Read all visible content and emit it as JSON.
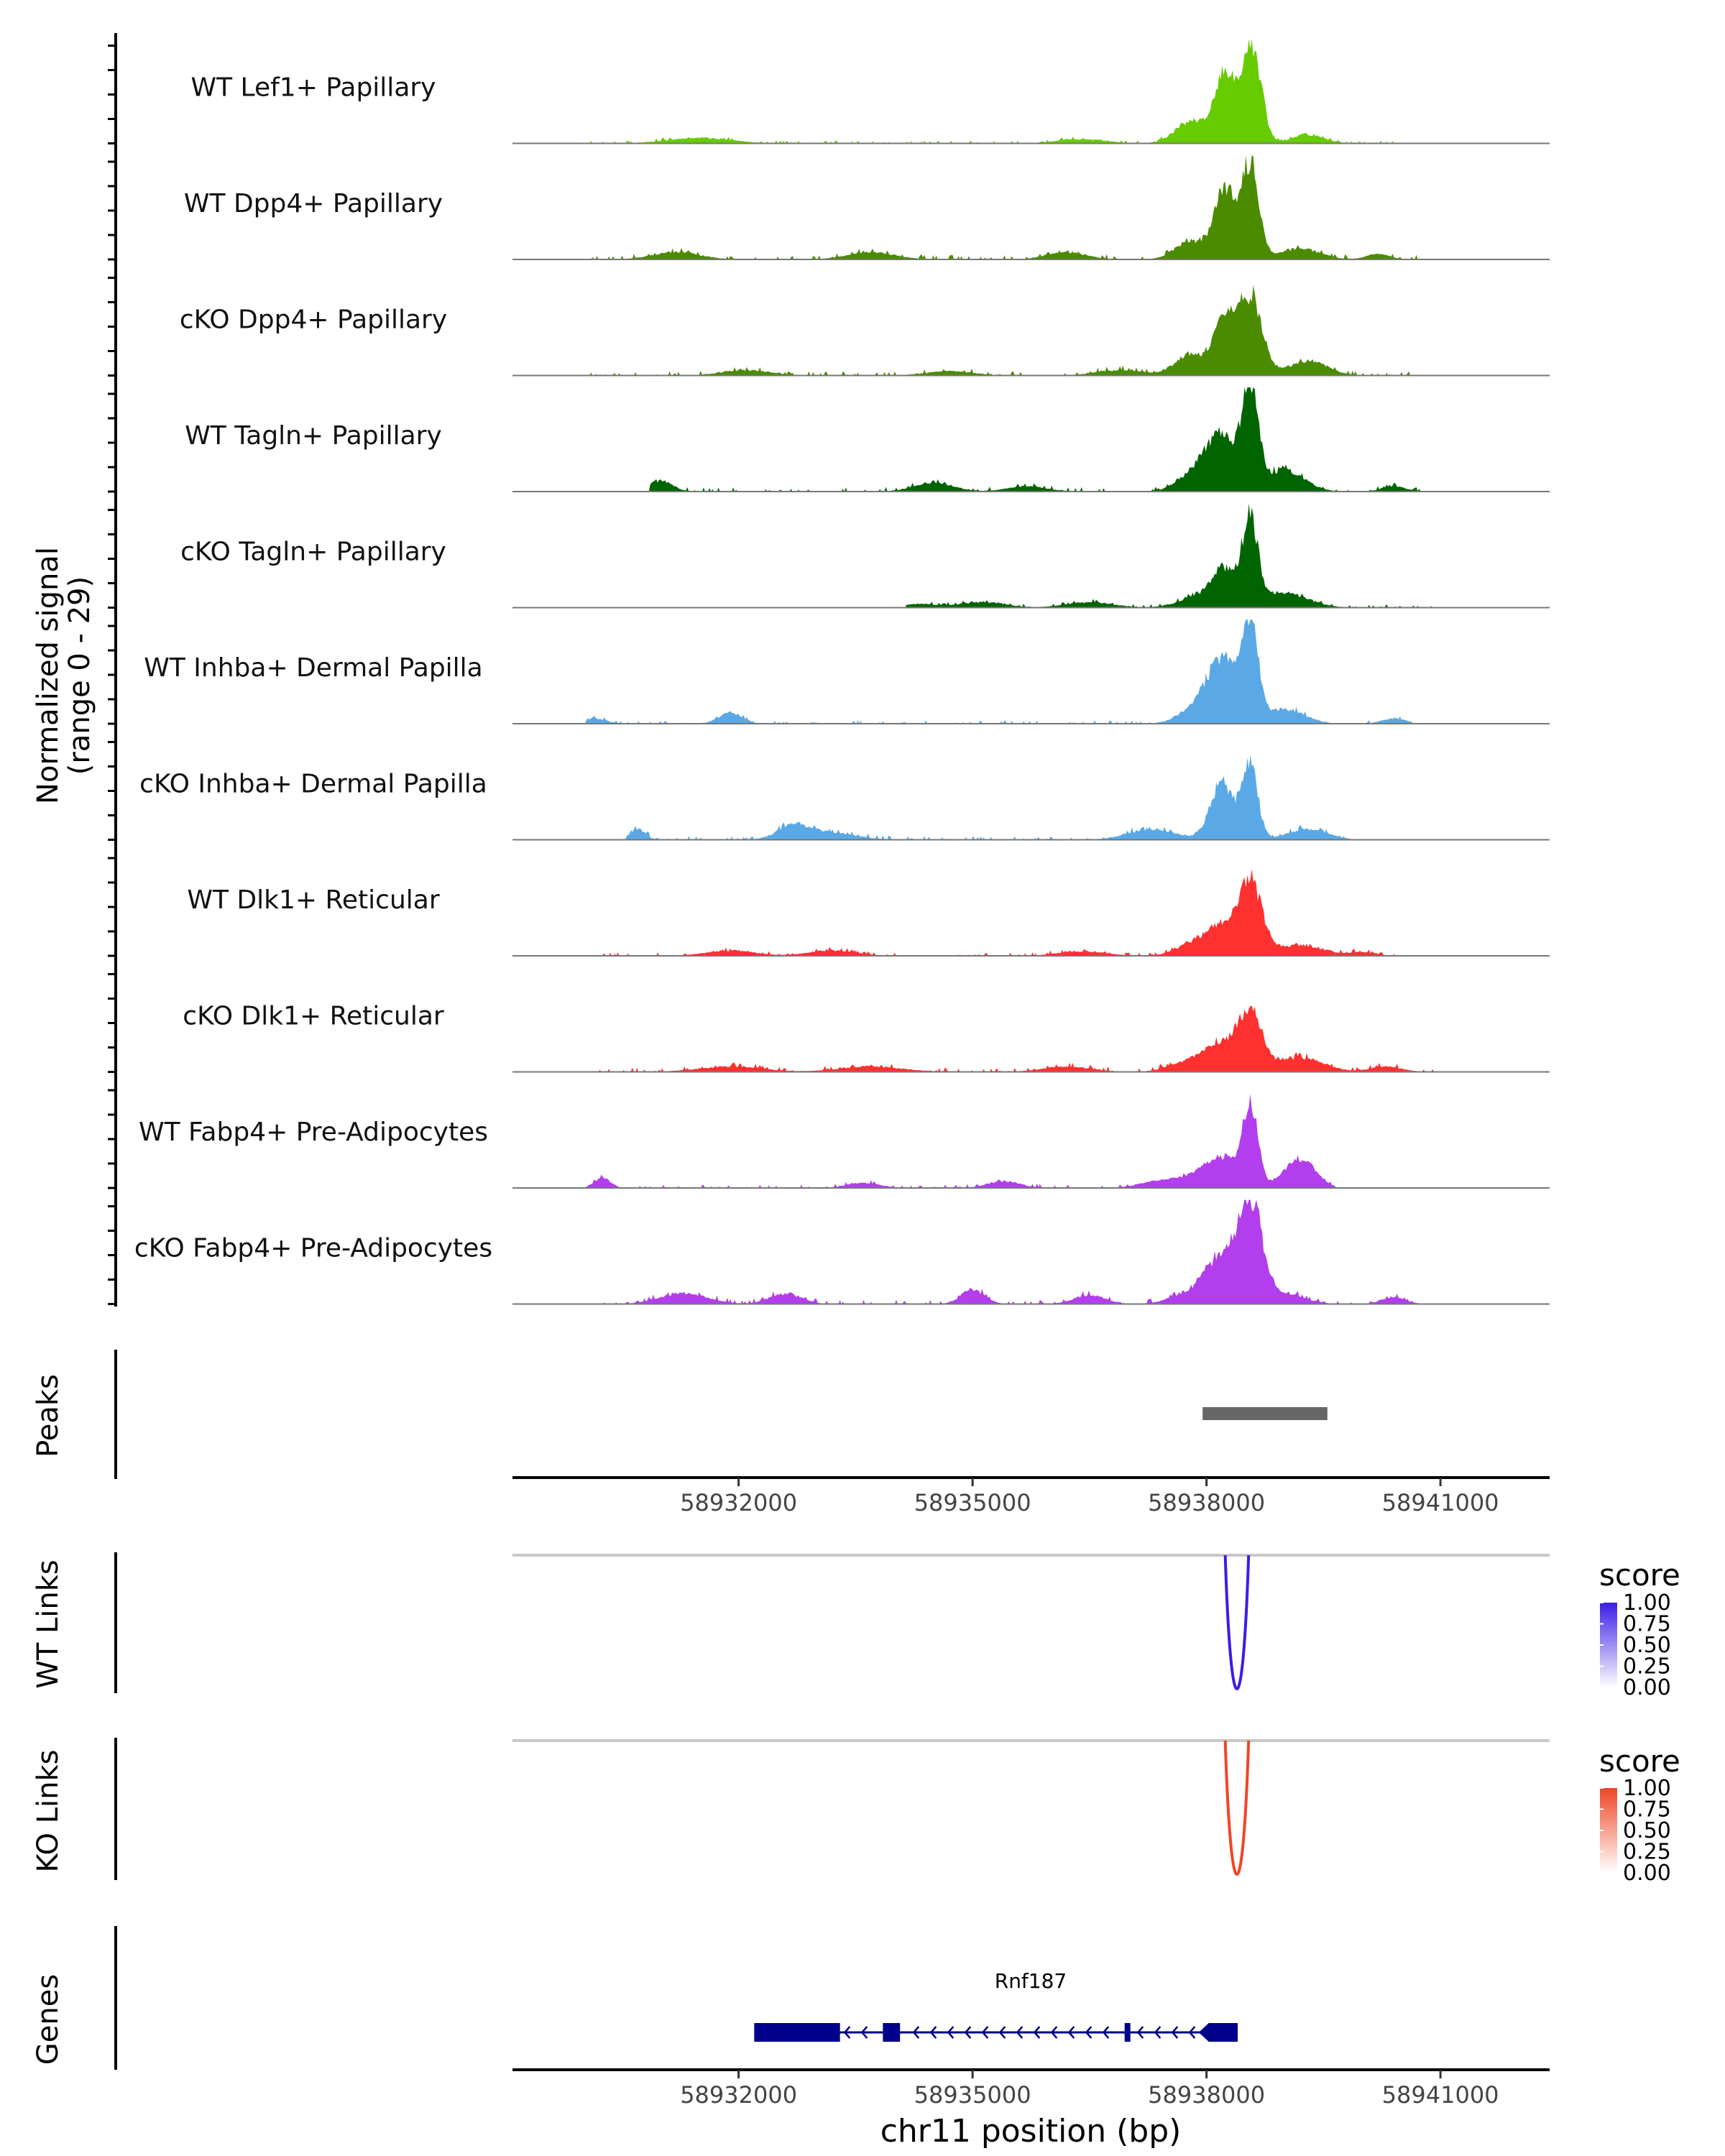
{
  "chart_data": {
    "type": "area",
    "title": "",
    "chromosome": "chr11",
    "xlabel": "chr11 position (bp)",
    "xlim": [
      58929100,
      58942400
    ],
    "x_ticks": [
      58932000,
      58935000,
      58938000,
      58941000
    ],
    "x_tick_labels": [
      "58932000",
      "58935000",
      "58938000",
      "58941000"
    ],
    "coverage": {
      "ylabel_line1": "Normalized signal",
      "ylabel_line2": "(range 0 - 29)",
      "ylim": [
        0,
        29
      ],
      "tracks": [
        {
          "name": "WT Lef1+ Papillary",
          "color": "#66CC00",
          "peaks": [
            [
              58938580,
              28.0,
              120
            ],
            [
              58938240,
              20.0,
              130
            ],
            [
              58937800,
              6.0,
              200
            ],
            [
              58939300,
              2.5,
              200
            ],
            [
              58931500,
              1.5,
              400
            ],
            [
              58936400,
              1.2,
              300
            ]
          ],
          "noise": [
            58930100,
            58940500
          ],
          "noise_amp": 0.8
        },
        {
          "name": "WT Dpp4+ Papillary",
          "color": "#4B8B00",
          "peaks": [
            [
              58938560,
              27.0,
              110
            ],
            [
              58938230,
              19.0,
              130
            ],
            [
              58937800,
              5.0,
              200
            ],
            [
              58939200,
              3.0,
              250
            ],
            [
              58931200,
              2.0,
              300
            ],
            [
              58933700,
              2.0,
              300
            ],
            [
              58936200,
              2.0,
              250
            ],
            [
              58940200,
              1.5,
              150
            ]
          ],
          "noise": [
            58930100,
            58940900
          ],
          "noise_amp": 1.3
        },
        {
          "name": "cKO Dpp4+ Papillary",
          "color": "#4B8B00",
          "peaks": [
            [
              58938560,
              22.0,
              150
            ],
            [
              58938230,
              16.0,
              130
            ],
            [
              58937800,
              6.0,
              200
            ],
            [
              58939300,
              4.0,
              250
            ],
            [
              58932100,
              1.5,
              300
            ],
            [
              58934700,
              1.2,
              300
            ],
            [
              58936900,
              1.5,
              300
            ]
          ],
          "noise": [
            58930100,
            58940900
          ],
          "noise_amp": 1.2
        },
        {
          "name": "WT Tagln+ Papillary",
          "color": "#006400",
          "peaks": [
            [
              58938560,
              28.0,
              100
            ],
            [
              58938180,
              16.0,
              200
            ],
            [
              58937800,
              4.0,
              200
            ],
            [
              58939000,
              6.0,
              250
            ],
            [
              58931000,
              3.0,
              150
            ],
            [
              58934500,
              2.5,
              250
            ],
            [
              58935700,
              1.5,
              250
            ],
            [
              58940400,
              1.5,
              150
            ]
          ],
          "noise": [
            58930900,
            58940900
          ],
          "noise_amp": 1.2
        },
        {
          "name": "cKO Tagln+ Papillary",
          "color": "#006400",
          "peaks": [
            [
              58938560,
              24.0,
              100
            ],
            [
              58938230,
              10.0,
              150
            ],
            [
              58937900,
              3.0,
              250
            ],
            [
              58939000,
              4.0,
              300
            ],
            [
              58935100,
              1.5,
              300
            ],
            [
              58936500,
              1.5,
              300
            ],
            [
              58934300,
              1.0,
              200
            ]
          ],
          "noise": [
            58934200,
            58940900
          ],
          "noise_amp": 1.0
        },
        {
          "name": "WT Inhba+ Dermal Papilla",
          "color": "#5AA9E6",
          "peaks": [
            [
              58938560,
              27.0,
              100
            ],
            [
              58938200,
              18.0,
              200
            ],
            [
              58937800,
              3.0,
              200
            ],
            [
              58939000,
              4.0,
              250
            ],
            [
              58931900,
              3.0,
              150
            ],
            [
              58930150,
              1.5,
              150
            ],
            [
              58940400,
              1.5,
              150
            ]
          ],
          "noise": [
            58930100,
            58940600
          ],
          "noise_amp": 1.0
        },
        {
          "name": "cKO Inhba+ Dermal Papilla",
          "color": "#5AA9E6",
          "peaks": [
            [
              58938560,
              20.0,
              100
            ],
            [
              58938200,
              16.0,
              150
            ],
            [
              58937300,
              3.0,
              300
            ],
            [
              58939300,
              3.0,
              250
            ],
            [
              58932700,
              4.0,
              200
            ],
            [
              58930700,
              3.0,
              100
            ],
            [
              58933200,
              2.0,
              300
            ]
          ],
          "noise": [
            58930600,
            58939800
          ],
          "noise_amp": 1.2
        },
        {
          "name": "WT Dlk1+ Reticular",
          "color": "#FF3030",
          "peaks": [
            [
              58938560,
              20.0,
              150
            ],
            [
              58938200,
              8.0,
              200
            ],
            [
              58937800,
              3.0,
              200
            ],
            [
              58939200,
              3.0,
              300
            ],
            [
              58931900,
              1.5,
              300
            ],
            [
              58933200,
              1.5,
              300
            ],
            [
              58936400,
              1.2,
              300
            ],
            [
              58940000,
              1.0,
              150
            ]
          ],
          "noise": [
            58930100,
            58940600
          ],
          "noise_amp": 1.0
        },
        {
          "name": "cKO Dlk1+ Reticular",
          "color": "#FF3030",
          "peaks": [
            [
              58938560,
              16.0,
              150
            ],
            [
              58938200,
              7.0,
              200
            ],
            [
              58937800,
              3.0,
              250
            ],
            [
              58939200,
              4.0,
              300
            ],
            [
              58931900,
              1.5,
              400
            ],
            [
              58933700,
              1.5,
              400
            ],
            [
              58936200,
              1.5,
              300
            ],
            [
              58940300,
              1.5,
              200
            ]
          ],
          "noise": [
            58930100,
            58940900
          ],
          "noise_amp": 1.2
        },
        {
          "name": "WT Fabp4+ Pre-Adipocytes",
          "color": "#B23EEE",
          "peaks": [
            [
              58938560,
              22.0,
              100
            ],
            [
              58938200,
              8.0,
              200
            ],
            [
              58937800,
              3.0,
              250
            ],
            [
              58939200,
              8.0,
              200
            ],
            [
              58930250,
              3.0,
              100
            ],
            [
              58933600,
              1.5,
              200
            ],
            [
              58935400,
              2.0,
              200
            ],
            [
              58937300,
              1.5,
              200
            ]
          ],
          "noise": [
            58930100,
            58939600
          ],
          "noise_amp": 1.0
        },
        {
          "name": "cKO Fabp4+ Pre-Adipocytes",
          "color": "#B23EEE",
          "peaks": [
            [
              58938560,
              27.0,
              150
            ],
            [
              58938200,
              12.0,
              200
            ],
            [
              58937800,
              3.0,
              250
            ],
            [
              58939000,
              3.0,
              250
            ],
            [
              58931300,
              3.0,
              300
            ],
            [
              58932600,
              3.0,
              200
            ],
            [
              58935000,
              4.0,
              150
            ],
            [
              58936500,
              2.5,
              200
            ],
            [
              58940400,
              2.0,
              150
            ]
          ],
          "noise": [
            58930200,
            58940700
          ],
          "noise_amp": 1.2
        }
      ]
    },
    "peaks_track": {
      "label": "Peaks",
      "color": "#666666",
      "regions": [
        [
          58937950,
          58939550
        ]
      ]
    },
    "links": [
      {
        "label": "WT Links",
        "color": "#3A1EE6",
        "legend_low": "#FFFFFF",
        "start": 58938240,
        "end": 58938540,
        "score": 1.0,
        "legend_title": "score",
        "legend_ticks": [
          "1.00",
          "0.75",
          "0.50",
          "0.25",
          "0.00"
        ]
      },
      {
        "label": "KO Links",
        "color": "#F04526",
        "legend_low": "#FFFFFF",
        "start": 58938240,
        "end": 58938540,
        "score": 1.0,
        "legend_title": "score",
        "legend_ticks": [
          "1.00",
          "0.75",
          "0.50",
          "0.25",
          "0.00"
        ]
      }
    ],
    "genes": {
      "label": "Genes",
      "color": "#00008B",
      "gene": "Rnf187",
      "strand": "-",
      "span": [
        58932200,
        58938400
      ],
      "thick_exons": [
        [
          58932200,
          58933300
        ],
        [
          58933850,
          58934070
        ],
        [
          58936950,
          58937000
        ],
        [
          58937900,
          58938400
        ]
      ]
    }
  }
}
